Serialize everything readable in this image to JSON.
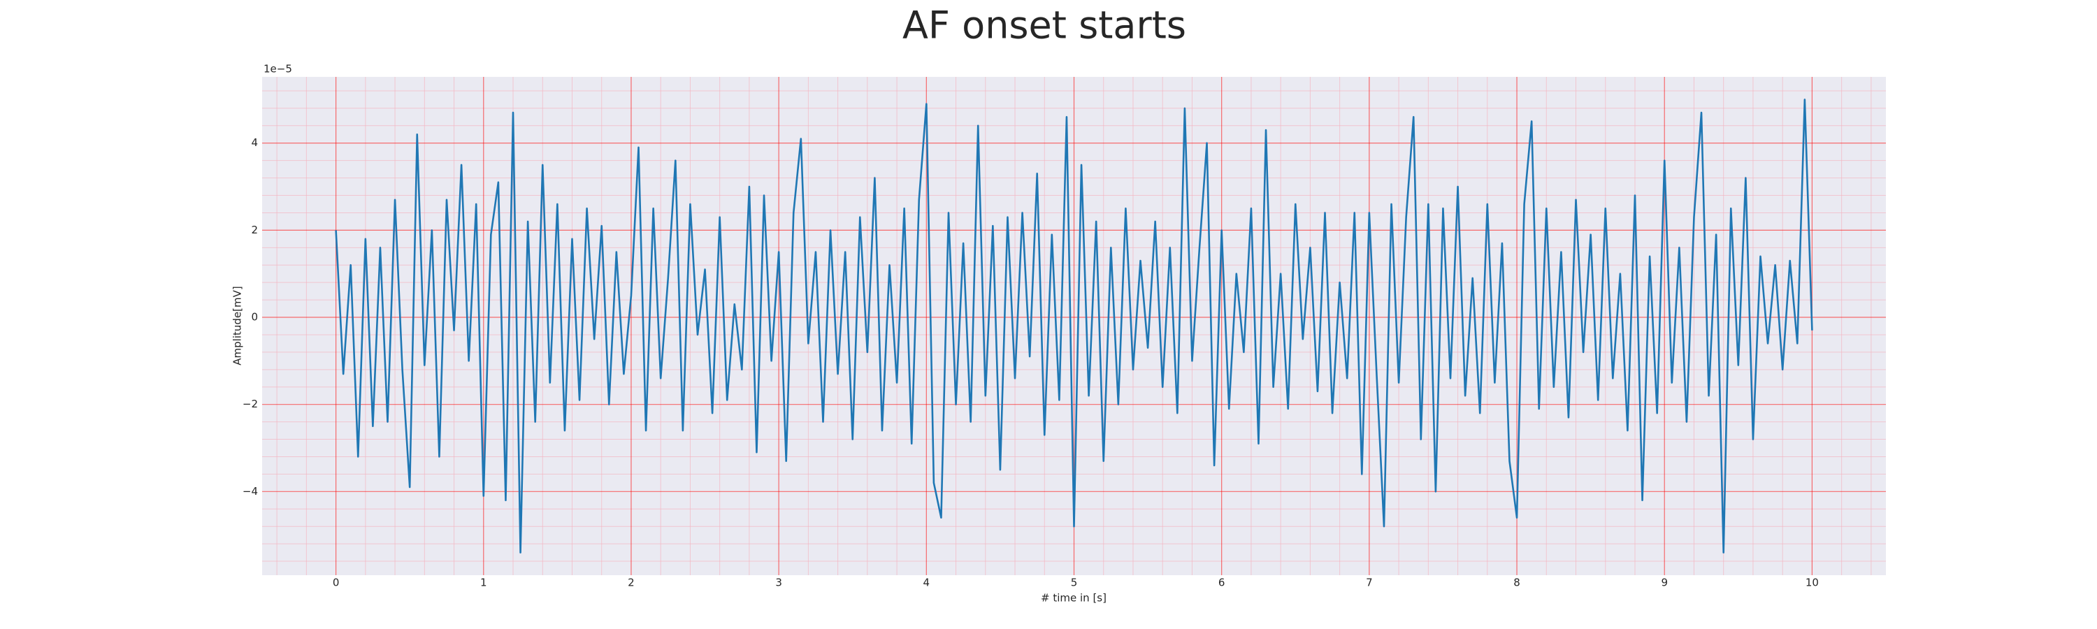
{
  "chart_data": {
    "type": "line",
    "title": "AF onset starts",
    "xlabel": "# time in [s]",
    "ylabel": "Amplitude[mV]",
    "offset_text": "1e−5",
    "color": "#1f77b4",
    "grid": true,
    "minor_grid": true,
    "xlim": [
      -0.5,
      10.5
    ],
    "ylim": [
      -5.92,
      5.52
    ],
    "xticks": [
      0,
      1,
      2,
      3,
      4,
      5,
      6,
      7,
      8,
      9,
      10
    ],
    "yticks": [
      {
        "value": -4,
        "label": "−4"
      },
      {
        "value": -2,
        "label": "−2"
      },
      0,
      2,
      4
    ],
    "x": [
      0,
      0.05,
      0.1,
      0.15,
      0.2,
      0.25,
      0.3,
      0.35,
      0.4,
      0.45,
      0.5,
      0.55,
      0.6,
      0.65,
      0.7,
      0.75,
      0.8,
      0.85,
      0.9,
      0.95,
      1,
      1.05,
      1.1,
      1.15,
      1.2,
      1.25,
      1.3,
      1.35,
      1.4,
      1.45,
      1.5,
      1.55,
      1.6,
      1.65,
      1.7,
      1.75,
      1.8,
      1.85,
      1.9,
      1.95,
      2,
      2.05,
      2.1,
      2.15,
      2.2,
      2.25,
      2.3,
      2.35,
      2.4,
      2.45,
      2.5,
      2.55,
      2.6,
      2.65,
      2.7,
      2.75,
      2.8,
      2.85,
      2.9,
      2.95,
      3,
      3.05,
      3.1,
      3.15,
      3.2,
      3.25,
      3.3,
      3.35,
      3.4,
      3.45,
      3.5,
      3.55,
      3.6,
      3.65,
      3.7,
      3.75,
      3.8,
      3.85,
      3.9,
      3.95,
      4,
      4.05,
      4.1,
      4.15,
      4.2,
      4.25,
      4.3,
      4.35,
      4.4,
      4.45,
      4.5,
      4.55,
      4.6,
      4.65,
      4.7,
      4.75,
      4.8,
      4.85,
      4.9,
      4.95,
      5,
      5.05,
      5.1,
      5.15,
      5.2,
      5.25,
      5.3,
      5.35,
      5.4,
      5.45,
      5.5,
      5.55,
      5.6,
      5.65,
      5.7,
      5.75,
      5.8,
      5.85,
      5.9,
      5.95,
      6,
      6.05,
      6.1,
      6.15,
      6.2,
      6.25,
      6.3,
      6.35,
      6.4,
      6.45,
      6.5,
      6.55,
      6.6,
      6.65,
      6.7,
      6.75,
      6.8,
      6.85,
      6.9,
      6.95,
      7,
      7.05,
      7.1,
      7.15,
      7.2,
      7.25,
      7.3,
      7.35,
      7.4,
      7.45,
      7.5,
      7.55,
      7.6,
      7.65,
      7.7,
      7.75,
      7.8,
      7.85,
      7.9,
      7.95,
      8,
      8.05,
      8.1,
      8.15,
      8.2,
      8.25,
      8.3,
      8.35,
      8.4,
      8.45,
      8.5,
      8.55,
      8.6,
      8.65,
      8.7,
      8.75,
      8.8,
      8.85,
      8.9,
      8.95,
      9,
      9.05,
      9.1,
      9.15,
      9.2,
      9.25,
      9.3,
      9.35,
      9.4,
      9.45,
      9.5,
      9.55,
      9.6,
      9.65,
      9.7,
      9.75,
      9.8,
      9.85,
      9.9,
      9.95,
      10
    ],
    "values": [
      2.0,
      -1.3,
      1.2,
      -3.2,
      1.8,
      -2.5,
      1.6,
      -2.4,
      2.7,
      -1.2,
      -3.9,
      4.2,
      -1.1,
      2.0,
      -3.2,
      2.7,
      -0.3,
      3.5,
      -1.0,
      2.6,
      -4.1,
      1.9,
      3.1,
      -4.2,
      4.7,
      -5.4,
      2.2,
      -2.4,
      3.5,
      -1.5,
      2.6,
      -2.6,
      1.8,
      -1.9,
      2.5,
      -0.5,
      2.1,
      -2.0,
      1.5,
      -1.3,
      0.5,
      3.9,
      -2.6,
      2.5,
      -1.4,
      0.9,
      3.6,
      -2.6,
      2.6,
      -0.4,
      1.1,
      -2.2,
      2.3,
      -1.9,
      0.3,
      -1.2,
      3.0,
      -3.1,
      2.8,
      -1.0,
      1.5,
      -3.3,
      2.4,
      4.1,
      -0.6,
      1.5,
      -2.4,
      2.0,
      -1.3,
      1.5,
      -2.8,
      2.3,
      -0.8,
      3.2,
      -2.6,
      1.2,
      -1.5,
      2.5,
      -2.9,
      2.7,
      4.9,
      -3.8,
      -4.6,
      2.4,
      -2.0,
      1.7,
      -2.4,
      4.4,
      -1.8,
      2.1,
      -3.5,
      2.3,
      -1.4,
      2.4,
      -0.9,
      3.3,
      -2.7,
      1.9,
      -1.9,
      4.6,
      -4.8,
      3.5,
      -1.8,
      2.2,
      -3.3,
      1.6,
      -2.0,
      2.5,
      -1.2,
      1.3,
      -0.7,
      2.2,
      -1.6,
      1.6,
      -2.2,
      4.8,
      -1.0,
      1.6,
      4.0,
      -3.4,
      2.0,
      -2.1,
      1.0,
      -0.8,
      2.5,
      -2.9,
      4.3,
      -1.6,
      1.0,
      -2.1,
      2.6,
      -0.5,
      1.6,
      -1.7,
      2.4,
      -2.2,
      0.8,
      -1.4,
      2.4,
      -3.6,
      2.4,
      -1.3,
      -4.8,
      2.6,
      -1.5,
      2.3,
      4.6,
      -2.8,
      2.6,
      -4.0,
      2.5,
      -1.4,
      3.0,
      -1.8,
      0.9,
      -2.2,
      2.6,
      -1.5,
      1.7,
      -3.3,
      -4.6,
      2.6,
      4.5,
      -2.1,
      2.5,
      -1.6,
      1.5,
      -2.3,
      2.7,
      -0.8,
      1.9,
      -1.9,
      2.5,
      -1.4,
      1.0,
      -2.6,
      2.8,
      -4.2,
      1.4,
      -2.2,
      3.6,
      -1.5,
      1.6,
      -2.4,
      2.3,
      4.7,
      -1.8,
      1.9,
      -5.4,
      2.5,
      -1.1,
      3.2,
      -2.8,
      1.4,
      -0.6,
      1.2,
      -1.2,
      1.3,
      -0.6,
      5.0,
      -0.3
    ]
  }
}
